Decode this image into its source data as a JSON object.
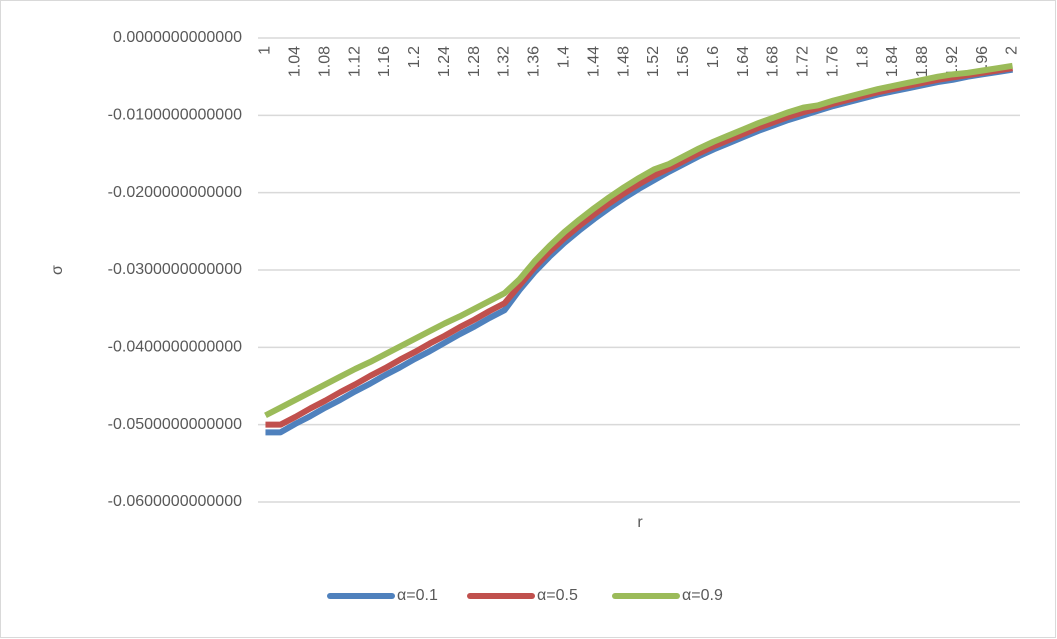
{
  "chart_data": {
    "type": "line",
    "x_label": "r",
    "y_label": "σ",
    "categories": [
      "1",
      null,
      "1.04",
      null,
      "1.08",
      null,
      "1.12",
      null,
      "1.16",
      null,
      "1.2",
      null,
      "1.24",
      null,
      "1.28",
      null,
      "1.32",
      null,
      "1.36",
      null,
      "1.4",
      null,
      "1.44",
      null,
      "1.48",
      null,
      "1.52",
      null,
      "1.56",
      null,
      "1.6",
      null,
      "1.64",
      null,
      "1.68",
      null,
      "1.72",
      null,
      "1.76",
      null,
      "1.8",
      null,
      "1.84",
      null,
      "1.88",
      null,
      "1.92",
      null,
      "1.96",
      null,
      "2"
    ],
    "series": [
      {
        "name": "α=0.1",
        "color": "#4f81bd",
        "values": [
          -0.051,
          -0.051,
          -0.0499,
          -0.0489,
          -0.0478,
          -0.0468,
          -0.0457,
          -0.0447,
          -0.0436,
          -0.0426,
          -0.0415,
          -0.0405,
          -0.0394,
          -0.0383,
          -0.0373,
          -0.0362,
          -0.0352,
          -0.0326,
          -0.0303,
          -0.0283,
          -0.0265,
          -0.0249,
          -0.0234,
          -0.022,
          -0.0207,
          -0.0195,
          -0.0184,
          -0.0173,
          -0.0163,
          -0.0153,
          -0.0144,
          -0.0136,
          -0.0128,
          -0.012,
          -0.0113,
          -0.0106,
          -0.01,
          -0.0094,
          -0.0088,
          -0.0083,
          -0.0078,
          -0.0073,
          -0.0069,
          -0.0065,
          -0.0061,
          -0.0057,
          -0.0054,
          -0.005,
          -0.0047,
          -0.0044,
          -0.0041
        ]
      },
      {
        "name": "α=0.5",
        "color": "#c0504d",
        "values": [
          -0.05,
          -0.05,
          -0.049,
          -0.0479,
          -0.0469,
          -0.0458,
          -0.0448,
          -0.0437,
          -0.0427,
          -0.0416,
          -0.0406,
          -0.0395,
          -0.0385,
          -0.0374,
          -0.0364,
          -0.0353,
          -0.0343,
          -0.032,
          -0.0297,
          -0.0277,
          -0.0259,
          -0.0243,
          -0.0228,
          -0.0214,
          -0.0201,
          -0.0189,
          -0.0178,
          -0.0169,
          -0.0159,
          -0.0149,
          -0.014,
          -0.0132,
          -0.0124,
          -0.0116,
          -0.0109,
          -0.0102,
          -0.0096,
          -0.0091,
          -0.0085,
          -0.008,
          -0.0075,
          -0.007,
          -0.0066,
          -0.0062,
          -0.0058,
          -0.0054,
          -0.0051,
          -0.0048,
          -0.0045,
          -0.0042,
          -0.0039
        ]
      },
      {
        "name": "α=0.9",
        "color": "#9bbb59",
        "values": [
          -0.0488,
          -0.0478,
          -0.0468,
          -0.0458,
          -0.0448,
          -0.0438,
          -0.0428,
          -0.0419,
          -0.0409,
          -0.0399,
          -0.0389,
          -0.0379,
          -0.0369,
          -0.036,
          -0.035,
          -0.034,
          -0.033,
          -0.0312,
          -0.0289,
          -0.0269,
          -0.0251,
          -0.0235,
          -0.022,
          -0.0206,
          -0.0193,
          -0.0181,
          -0.017,
          -0.0163,
          -0.0153,
          -0.0143,
          -0.0134,
          -0.0126,
          -0.0118,
          -0.011,
          -0.0103,
          -0.0096,
          -0.009,
          -0.0087,
          -0.0081,
          -0.0076,
          -0.0071,
          -0.0066,
          -0.0062,
          -0.0058,
          -0.0054,
          -0.005,
          -0.0047,
          -0.0045,
          -0.0042,
          -0.0039,
          -0.0036
        ]
      }
    ],
    "ylim": [
      -0.06,
      0
    ],
    "yticks": [
      {
        "value": 0,
        "label": "0.0000000000000"
      },
      {
        "value": -0.01,
        "label": "-0.0100000000000"
      },
      {
        "value": -0.02,
        "label": "-0.0200000000000"
      },
      {
        "value": -0.03,
        "label": "-0.0300000000000"
      },
      {
        "value": -0.04,
        "label": "-0.0400000000000"
      },
      {
        "value": -0.05,
        "label": "-0.0500000000000"
      },
      {
        "value": -0.06,
        "label": "-0.0600000000000"
      }
    ],
    "grid": true,
    "legend": "bottom"
  }
}
